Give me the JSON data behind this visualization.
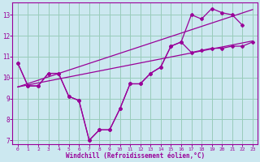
{
  "xlabel": "Windchill (Refroidissement éolien,°C)",
  "main_x": [
    0,
    1,
    2,
    3,
    4,
    5,
    6,
    7,
    8,
    9,
    10,
    11,
    12,
    13,
    14,
    15,
    16,
    17,
    18,
    19,
    20,
    21,
    22,
    23
  ],
  "main_y": [
    10.7,
    9.6,
    9.6,
    10.2,
    10.2,
    9.1,
    8.9,
    7.0,
    7.5,
    7.5,
    8.5,
    9.7,
    9.7,
    10.2,
    10.5,
    11.5,
    11.7,
    11.2,
    11.3,
    11.4,
    11.4,
    11.5,
    11.5,
    11.7
  ],
  "upper_x": [
    0,
    1,
    2,
    3,
    4,
    5,
    6,
    7,
    8,
    9,
    10,
    11,
    12,
    13,
    14,
    15,
    16,
    17,
    18,
    19,
    20,
    21,
    22
  ],
  "upper_y": [
    10.7,
    9.6,
    9.6,
    10.2,
    10.2,
    9.1,
    8.9,
    7.0,
    7.5,
    7.5,
    8.5,
    9.7,
    9.7,
    10.2,
    10.5,
    11.5,
    11.7,
    13.0,
    12.8,
    13.3,
    13.1,
    13.0,
    12.5
  ],
  "trend1_x": [
    0,
    23
  ],
  "trend1_y": [
    9.55,
    11.75
  ],
  "trend2_x": [
    0,
    23
  ],
  "trend2_y": [
    9.55,
    13.25
  ],
  "line_color": "#990099",
  "bg_color": "#cce8f0",
  "grid_color": "#99ccbb",
  "ylim": [
    6.8,
    13.6
  ],
  "xlim": [
    -0.5,
    23.5
  ],
  "yticks": [
    7,
    8,
    9,
    10,
    11,
    12,
    13
  ],
  "xticks": [
    0,
    1,
    2,
    3,
    4,
    5,
    6,
    7,
    8,
    9,
    10,
    11,
    12,
    13,
    14,
    15,
    16,
    17,
    18,
    19,
    20,
    21,
    22,
    23
  ]
}
